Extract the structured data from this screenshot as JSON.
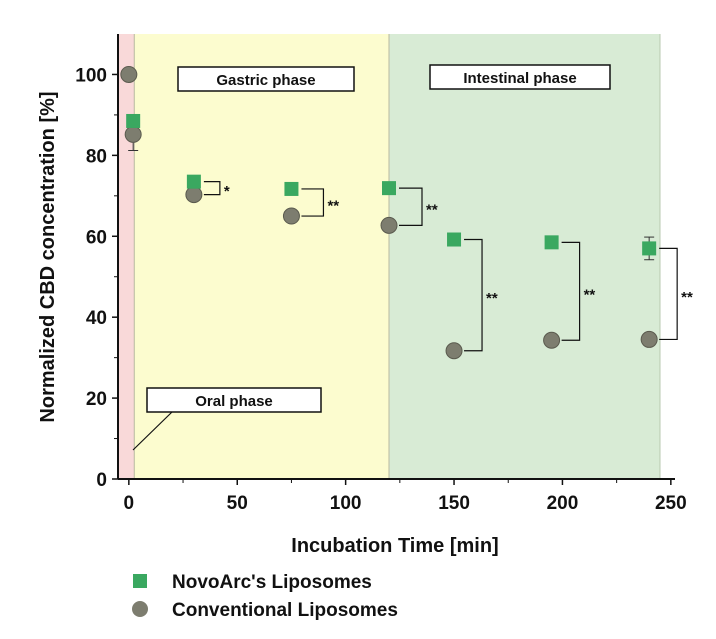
{
  "chart_data": {
    "type": "scatter",
    "xlabel": "Incubation Time [min]",
    "ylabel": "Normalized CBD concentration [%]",
    "xlim": [
      -5,
      245
    ],
    "ylim": [
      0,
      110
    ],
    "xticks": [
      0,
      50,
      100,
      150,
      200,
      250
    ],
    "yticks": [
      0,
      20,
      40,
      60,
      80,
      100
    ],
    "grid": false,
    "legend_position": "bottom-left",
    "phases": [
      {
        "label": "Oral phase",
        "x_range": [
          -5,
          2.5
        ],
        "color": "#f9d9d9"
      },
      {
        "label": "Gastric phase",
        "x_range": [
          2.5,
          120
        ],
        "color": "#fcfccf"
      },
      {
        "label": "Intestinal phase",
        "x_range": [
          120,
          245
        ],
        "color": "#d8ebd5"
      }
    ],
    "series": [
      {
        "name": "NovoArc's Liposomes",
        "marker": "square",
        "color": "#3aa860",
        "points": [
          {
            "x": 2,
            "y": 88.5,
            "err": 0
          },
          {
            "x": 30,
            "y": 73.5,
            "err": 0
          },
          {
            "x": 75,
            "y": 71.7,
            "err": 0
          },
          {
            "x": 120,
            "y": 71.9,
            "err": 0
          },
          {
            "x": 150,
            "y": 59.2,
            "err": 1.5
          },
          {
            "x": 195,
            "y": 58.5,
            "err": 0
          },
          {
            "x": 240,
            "y": 57.0,
            "err": 2.8
          }
        ]
      },
      {
        "name": "Conventional Liposomes",
        "marker": "circle",
        "color": "#7d7d6f",
        "points": [
          {
            "x": 0,
            "y": 100,
            "err": 0
          },
          {
            "x": 2,
            "y": 85.2,
            "err": 4.0
          },
          {
            "x": 30,
            "y": 70.3,
            "err": 0
          },
          {
            "x": 75,
            "y": 65.0,
            "err": 0
          },
          {
            "x": 120,
            "y": 62.7,
            "err": 0
          },
          {
            "x": 150,
            "y": 31.7,
            "err": 0
          },
          {
            "x": 195,
            "y": 34.3,
            "err": 0
          },
          {
            "x": 240,
            "y": 34.5,
            "err": 0
          }
        ]
      }
    ],
    "significance": [
      {
        "x": 30,
        "y_top": 73.5,
        "y_bottom": 70.3,
        "label": "*"
      },
      {
        "x": 75,
        "y_top": 71.7,
        "y_bottom": 65.0,
        "label": "**"
      },
      {
        "x": 120,
        "y_top": 71.9,
        "y_bottom": 62.7,
        "label": "**"
      },
      {
        "x": 150,
        "y_top": 59.2,
        "y_bottom": 31.7,
        "label": "**"
      },
      {
        "x": 195,
        "y_top": 58.5,
        "y_bottom": 34.3,
        "label": "**"
      },
      {
        "x": 240,
        "y_top": 57.0,
        "y_bottom": 34.5,
        "label": "**"
      }
    ]
  }
}
